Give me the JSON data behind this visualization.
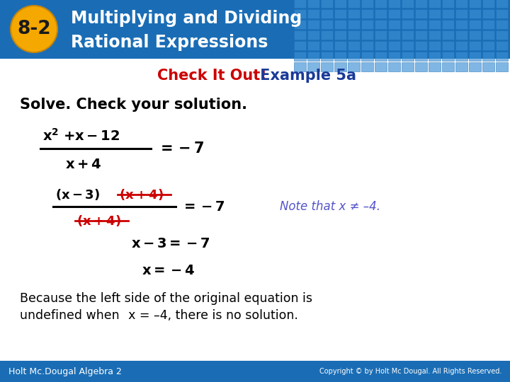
{
  "header_bg_color": "#1a6db5",
  "header_text_color": "#ffffff",
  "badge_bg_color": "#f5a800",
  "badge_text_color": "#1a1a1a",
  "badge_text": "8-2",
  "title_line1": "Multiplying and Dividing",
  "title_line2": "Rational Expressions",
  "check_it_out_color": "#cc0000",
  "example_color": "#1a3a99",
  "check_it_out_text": "Check It Out!",
  "example_text": " Example 5a",
  "solve_text": "Solve. Check your solution.",
  "body_bg_color": "#ffffff",
  "footer_bg_color": "#1a6db5",
  "footer_left_text": "Holt Mc.Dougal Algebra 2",
  "footer_right_text": "Copyright © by Holt Mc Dougal. All Rights Reserved.",
  "footer_text_color": "#ffffff",
  "note_color": "#5555cc",
  "note_text": "Note that x ≠ –4.",
  "strikethrough_color": "#cc0000",
  "black": "#000000",
  "grid_color": "#3a8fd4",
  "grid_edge_color": "#1a6db5"
}
